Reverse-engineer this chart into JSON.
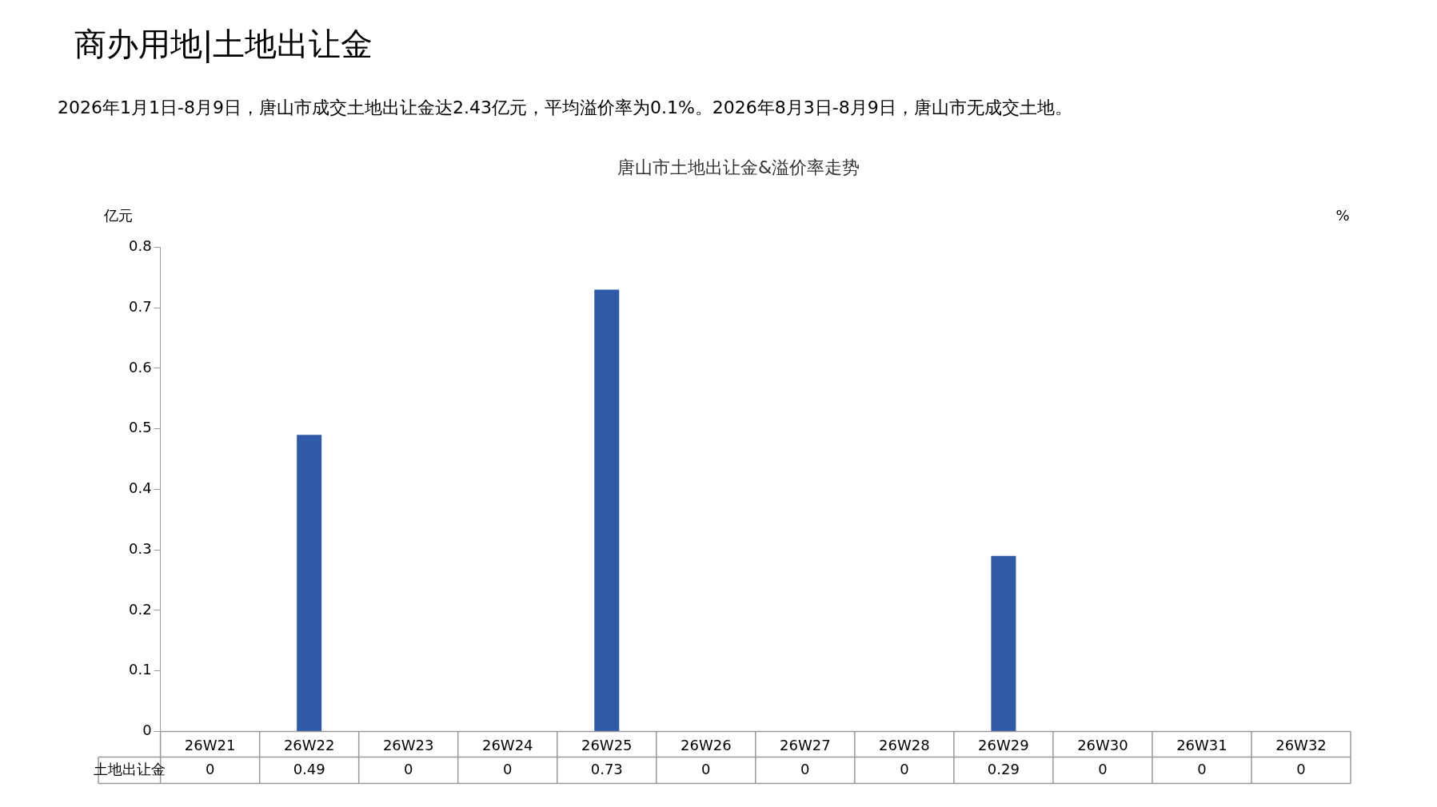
{
  "chart_data": {
    "type": "bar",
    "title": "唐山市土地出让金&溢价率走势",
    "subtitle": "商办用地|土地出让金",
    "annotations": [
      "2026年1月1日-8月9日，唐山市成交土地出让金达2.43亿元，平均溢价率为0.1%。2026年8月3日-8月9日，唐山市无成交土地。"
    ],
    "ylabel": "亿元",
    "y2label": "%",
    "categories": [
      "26W21",
      "26W22",
      "26W23",
      "26W24",
      "26W25",
      "26W26",
      "26W27",
      "26W28",
      "26W29",
      "26W30",
      "26W31",
      "26W32"
    ],
    "series": [
      {
        "name": "土地出让金",
        "color": "#2e5aa8",
        "values": [
          0,
          0.49,
          0,
          0,
          0.73,
          0,
          0,
          0,
          0.29,
          0,
          0,
          0
        ]
      }
    ],
    "ylim": [
      0,
      0.8
    ],
    "yticks": [
      0,
      0.1,
      0.2,
      0.3,
      0.4,
      0.5,
      0.6,
      0.7,
      0.8
    ],
    "data_labels": true,
    "grid": false,
    "legend": false
  }
}
